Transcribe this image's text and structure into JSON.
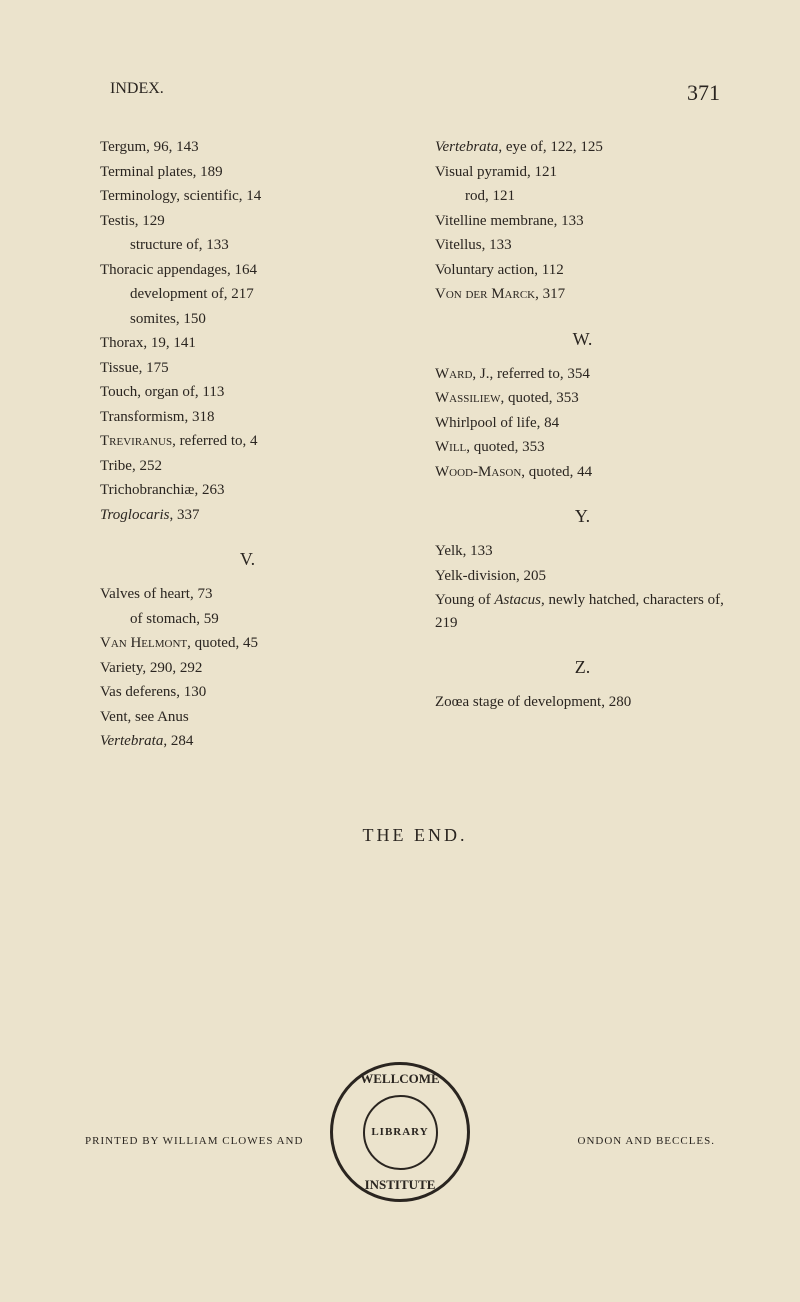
{
  "header": {
    "title": "INDEX.",
    "pageNumber": "371"
  },
  "leftColumn": {
    "entries": [
      {
        "text": "Tergum, 96, 143"
      },
      {
        "text": "Terminal plates, 189"
      },
      {
        "text": "Terminology, scientific, 14"
      },
      {
        "text": "Testis, 129"
      },
      {
        "text": "structure of, 133",
        "indent": true
      },
      {
        "text": "Thoracic appendages, 164"
      },
      {
        "text": "development of, 217",
        "indent": true
      },
      {
        "text": "somites, 150",
        "indent": true
      },
      {
        "text": "Thorax, 19, 141"
      },
      {
        "text": "Tissue, 175"
      },
      {
        "text": "Touch, organ of, 113"
      },
      {
        "text": "Transformism, 318"
      },
      {
        "text": "Treviranus, referred to, 4",
        "sc": true
      },
      {
        "text": "Tribe, 252"
      },
      {
        "text": "Trichobranchiæ, 263"
      },
      {
        "text": "Troglocaris, 337",
        "italic": true
      }
    ],
    "sectionV": "V.",
    "entriesV": [
      {
        "text": "Valves of heart, 73"
      },
      {
        "text": "of stomach, 59",
        "indent": true
      },
      {
        "text": "Van Helmont, quoted, 45",
        "sc": true
      },
      {
        "text": "Variety, 290, 292"
      },
      {
        "text": "Vas deferens, 130"
      },
      {
        "text": "Vent, see Anus"
      },
      {
        "text": "Vertebrata, 284",
        "italic": true
      }
    ]
  },
  "rightColumn": {
    "entries": [
      {
        "text": "Vertebrata, eye of, 122, 125",
        "italicFirst": true
      },
      {
        "text": "Visual pyramid, 121"
      },
      {
        "text": "rod, 121",
        "indent": true
      },
      {
        "text": "Vitelline membrane, 133"
      },
      {
        "text": "Vitellus, 133"
      },
      {
        "text": "Voluntary action, 112"
      },
      {
        "text": "Von der Marck, 317",
        "sc": true
      }
    ],
    "sectionW": "W.",
    "entriesW": [
      {
        "text": "Ward, J., referred to, 354",
        "sc": true
      },
      {
        "text": "Wassiliew, quoted, 353",
        "sc": true
      },
      {
        "text": "Whirlpool of life, 84"
      },
      {
        "text": "Will, quoted, 353",
        "sc": true
      },
      {
        "text": "Wood-Mason, quoted, 44",
        "sc": true
      }
    ],
    "sectionY": "Y.",
    "entriesY": [
      {
        "text": "Yelk, 133"
      },
      {
        "text": "Yelk-division, 205"
      },
      {
        "text": "Young of Astacus, newly hatched, characters of, 219",
        "italicWord": "Astacus"
      }
    ],
    "sectionZ": "Z.",
    "entriesZ": [
      {
        "text": "Zoœa stage of development, 280"
      }
    ]
  },
  "theEnd": "THE END.",
  "printed": {
    "left": "PRINTED BY WILLIAM CLOWES AND",
    "right": "ONDON AND BECCLES."
  },
  "stamp": {
    "top": "LCO",
    "left": "WEL",
    "right": "ME",
    "bottom": "STITU",
    "bottomLeft": "IN",
    "bottomRight": "TE",
    "inner": "LIBRARY"
  }
}
